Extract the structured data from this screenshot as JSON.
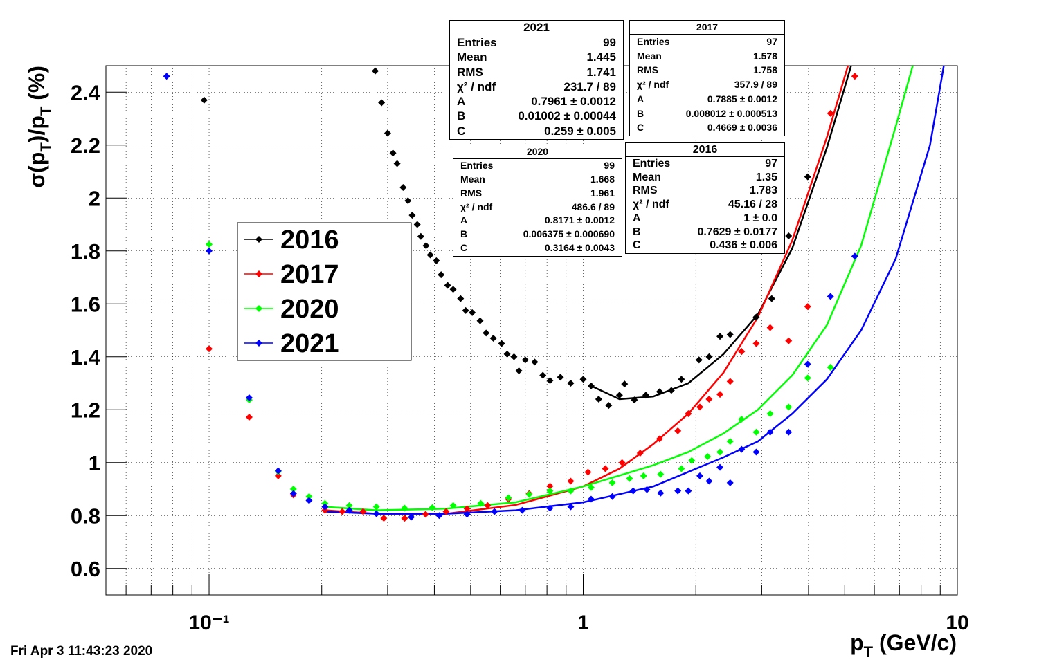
{
  "chart_data": {
    "type": "scatter",
    "x_label": [
      "p",
      "T",
      " (GeV/c)"
    ],
    "y_label": [
      "σ(p",
      "T",
      ")/p",
      "T",
      " (%)"
    ],
    "timestamp": "Fri Apr  3 11:43:23 2020",
    "xlog": true,
    "grid": true,
    "xlim": [
      0.053,
      10
    ],
    "ylim": [
      0.5,
      2.5
    ],
    "xticks": [
      {
        "value": 0.1,
        "label": "10⁻¹"
      },
      1,
      10
    ],
    "x_minor_ticks": [
      0.06,
      0.07,
      0.08,
      0.09,
      0.2,
      0.3,
      0.4,
      0.5,
      0.6,
      0.7,
      0.8,
      0.9,
      2,
      3,
      4,
      5,
      6,
      7,
      8,
      9
    ],
    "yticks": [
      0.6,
      0.8,
      1,
      1.2,
      1.4,
      1.6,
      1.8,
      2,
      2.2,
      2.4
    ],
    "series": [
      {
        "name": "2016",
        "color": "#000000",
        "x": [
          0.097,
          0.278,
          0.289,
          0.3,
          0.31,
          0.318,
          0.33,
          0.34,
          0.349,
          0.36,
          0.368,
          0.38,
          0.39,
          0.405,
          0.417,
          0.434,
          0.449,
          0.47,
          0.485,
          0.505,
          0.53,
          0.55,
          0.575,
          0.605,
          0.626,
          0.653,
          0.673,
          0.7,
          0.742,
          0.78,
          0.815,
          0.869,
          0.926,
          1.0,
          1.05,
          1.1,
          1.17,
          1.25,
          1.29,
          1.37,
          1.47,
          1.6,
          1.72,
          1.83,
          2.04,
          2.17,
          2.32,
          2.47,
          2.65,
          2.9,
          3.19,
          3.54,
          3.98
        ],
        "values": [
          2.37,
          2.48,
          2.36,
          2.245,
          2.17,
          2.13,
          2.04,
          1.99,
          1.935,
          1.9,
          1.855,
          1.82,
          1.785,
          1.763,
          1.71,
          1.67,
          1.655,
          1.62,
          1.575,
          1.567,
          1.536,
          1.49,
          1.47,
          1.45,
          1.41,
          1.4,
          1.347,
          1.388,
          1.38,
          1.33,
          1.31,
          1.323,
          1.3,
          1.315,
          1.29,
          1.24,
          1.216,
          1.255,
          1.297,
          1.237,
          1.255,
          1.268,
          1.273,
          1.315,
          1.388,
          1.4,
          1.477,
          1.484,
          1.42,
          1.55,
          1.62,
          1.857,
          2.08
        ],
        "fit_x": [
          1.05,
          1.25,
          1.54,
          1.91,
          2.37,
          2.93,
          3.62,
          4.48,
          5.2
        ],
        "fit_values": [
          1.29,
          1.24,
          1.25,
          1.3,
          1.41,
          1.56,
          1.81,
          2.19,
          2.5
        ]
      },
      {
        "name": "2017",
        "color": "#ff0000",
        "x": [
          0.1,
          0.128,
          0.153,
          0.168,
          0.204,
          0.227,
          0.258,
          0.293,
          0.333,
          0.379,
          0.43,
          0.489,
          0.555,
          0.631,
          0.717,
          0.815,
          0.926,
          1.03,
          1.146,
          1.27,
          1.42,
          1.6,
          1.79,
          1.91,
          2.05,
          2.17,
          2.32,
          2.47,
          2.65,
          2.9,
          3.16,
          3.54,
          3.98,
          4.58,
          5.32
        ],
        "values": [
          1.43,
          1.172,
          0.95,
          0.878,
          0.82,
          0.815,
          0.815,
          0.79,
          0.79,
          0.805,
          0.815,
          0.826,
          0.838,
          0.862,
          0.883,
          0.911,
          0.93,
          0.964,
          0.977,
          1.0,
          1.036,
          1.09,
          1.12,
          1.185,
          1.21,
          1.24,
          1.258,
          1.307,
          1.42,
          1.45,
          1.51,
          1.46,
          1.59,
          2.32,
          2.46
        ],
        "fit_x": [
          0.204,
          0.28,
          0.43,
          0.66,
          1.0,
          1.25,
          1.54,
          1.91,
          2.37,
          2.93,
          3.62,
          4.48,
          5.1
        ],
        "fit_values": [
          0.82,
          0.807,
          0.807,
          0.84,
          0.91,
          0.977,
          1.07,
          1.185,
          1.34,
          1.55,
          1.84,
          2.23,
          2.5
        ]
      },
      {
        "name": "2020",
        "color": "#00ff00",
        "x": [
          0.1,
          0.128,
          0.153,
          0.168,
          0.185,
          0.204,
          0.237,
          0.28,
          0.333,
          0.395,
          0.449,
          0.532,
          0.631,
          0.717,
          0.815,
          0.926,
          1.05,
          1.196,
          1.33,
          1.45,
          1.61,
          1.83,
          1.95,
          2.15,
          2.32,
          2.47,
          2.65,
          2.9,
          3.16,
          3.54,
          3.98,
          4.58
        ],
        "values": [
          1.825,
          1.237,
          0.966,
          0.9,
          0.872,
          0.846,
          0.838,
          0.833,
          0.828,
          0.83,
          0.838,
          0.846,
          0.867,
          0.88,
          0.893,
          0.893,
          0.906,
          0.924,
          0.94,
          0.95,
          0.956,
          0.977,
          1.008,
          1.023,
          1.04,
          1.08,
          1.164,
          1.115,
          1.185,
          1.21,
          1.32,
          1.36
        ],
        "fit_x": [
          0.204,
          0.28,
          0.43,
          0.66,
          1.0,
          1.54,
          1.91,
          2.37,
          2.93,
          3.62,
          4.48,
          5.53,
          6.84,
          7.6
        ],
        "fit_values": [
          0.833,
          0.82,
          0.826,
          0.85,
          0.91,
          0.99,
          1.04,
          1.11,
          1.2,
          1.33,
          1.52,
          1.82,
          2.27,
          2.5
        ]
      },
      {
        "name": "2021",
        "color": "#0000ff",
        "x": [
          0.077,
          0.1,
          0.128,
          0.153,
          0.168,
          0.185,
          0.204,
          0.237,
          0.28,
          0.347,
          0.412,
          0.489,
          0.579,
          0.687,
          0.815,
          0.926,
          1.05,
          1.196,
          1.36,
          1.48,
          1.61,
          1.79,
          1.91,
          2.05,
          2.17,
          2.32,
          2.47,
          2.65,
          2.9,
          3.16,
          3.54,
          3.98,
          4.58,
          5.32
        ],
        "values": [
          2.46,
          1.8,
          1.245,
          0.969,
          0.883,
          0.857,
          0.833,
          0.82,
          0.807,
          0.794,
          0.8,
          0.805,
          0.815,
          0.82,
          0.828,
          0.833,
          0.862,
          0.872,
          0.893,
          0.898,
          0.885,
          0.893,
          0.893,
          0.95,
          0.93,
          0.982,
          0.924,
          1.05,
          1.04,
          1.115,
          1.115,
          1.372,
          1.628,
          1.78
        ],
        "fit_x": [
          0.204,
          0.28,
          0.43,
          0.66,
          1.0,
          1.54,
          2.37,
          2.93,
          3.62,
          4.48,
          5.53,
          6.84,
          8.45,
          9.2
        ],
        "fit_values": [
          0.815,
          0.807,
          0.807,
          0.82,
          0.85,
          0.91,
          1.02,
          1.08,
          1.185,
          1.315,
          1.5,
          1.77,
          2.2,
          2.5
        ]
      }
    ],
    "stats_boxes": [
      {
        "title": "2021",
        "rows": [
          [
            "Entries",
            99
          ],
          [
            "Mean",
            1.445
          ],
          [
            "RMS",
            1.741
          ],
          [
            "χ² / ndf",
            "231.7 / 89"
          ],
          [
            "A",
            "0.7961 ± 0.0012"
          ],
          [
            "B",
            "0.01002 ± 0.00044"
          ],
          [
            "C",
            "0.259 ± 0.005"
          ]
        ]
      },
      {
        "title": "2017",
        "rows": [
          [
            "Entries",
            97
          ],
          [
            "Mean",
            1.578
          ],
          [
            "RMS",
            1.758
          ],
          [
            "χ² / ndf",
            "357.9 / 89"
          ],
          [
            "A",
            "0.7885 ± 0.0012"
          ],
          [
            "B",
            "0.008012 ± 0.000513"
          ],
          [
            "C",
            "0.4669 ± 0.0036"
          ]
        ]
      },
      {
        "title": "2020",
        "rows": [
          [
            "Entries",
            99
          ],
          [
            "Mean",
            1.668
          ],
          [
            "RMS",
            1.961
          ],
          [
            "χ² / ndf",
            "486.6 / 89"
          ],
          [
            "A",
            "0.8171 ± 0.0012"
          ],
          [
            "B",
            "0.006375 ± 0.000690"
          ],
          [
            "C",
            "0.3164 ± 0.0043"
          ]
        ]
      },
      {
        "title": "2016",
        "rows": [
          [
            "Entries",
            97
          ],
          [
            "Mean",
            1.35
          ],
          [
            "RMS",
            1.783
          ],
          [
            "χ² / ndf",
            "45.16 / 28"
          ],
          [
            "A",
            "1 ± 0.0"
          ],
          [
            "B",
            "0.7629 ± 0.0177"
          ],
          [
            "C",
            "0.436 ± 0.006"
          ]
        ]
      }
    ]
  }
}
